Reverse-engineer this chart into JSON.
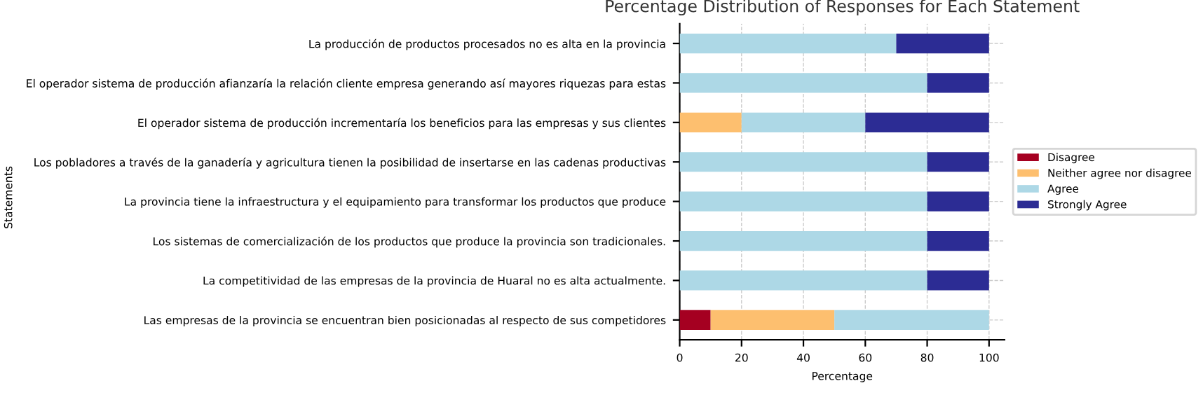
{
  "chart_data": {
    "type": "bar",
    "orientation": "horizontal",
    "stacked": true,
    "title": "Percentage Distribution of Responses for Each Statement",
    "xlabel": "Percentage",
    "ylabel": "Statements",
    "categories": [
      "La producción de productos procesados no es alta en la provincia",
      "El operador sistema de producción afianzaría la relación cliente empresa generando así mayores riquezas para estas",
      "El operador sistema de producción incrementaría los beneficios para las empresas y sus clientes",
      "Los pobladores a través de la ganadería y agricultura tienen la posibilidad de insertarse en las cadenas productivas",
      "La provincia tiene la infraestructura y el equipamiento para transformar los productos que produce",
      "Los sistemas de comercialización de los productos que produce la provincia son tradicionales.",
      "La competitividad de las empresas de la provincia de Huaral no es alta actualmente.",
      "Las empresas de la provincia se encuentran bien posicionadas al respecto de sus competidores"
    ],
    "series": [
      {
        "name": "Disagree",
        "color": "#a50021",
        "values": [
          0,
          0,
          0,
          0,
          0,
          0,
          0,
          10
        ]
      },
      {
        "name": "Neither agree nor disagree",
        "color": "#fdbf6f",
        "values": [
          0,
          0,
          20,
          0,
          0,
          0,
          0,
          40
        ]
      },
      {
        "name": "Agree",
        "color": "#add8e6",
        "values": [
          70,
          80,
          40,
          80,
          80,
          80,
          80,
          50
        ]
      },
      {
        "name": "Strongly Agree",
        "color": "#2c2c94",
        "values": [
          30,
          20,
          40,
          20,
          20,
          20,
          20,
          0
        ]
      }
    ],
    "xlim": [
      0,
      105
    ],
    "xticks": [
      0,
      20,
      40,
      60,
      80,
      100
    ],
    "grid": true,
    "legend": "right"
  }
}
